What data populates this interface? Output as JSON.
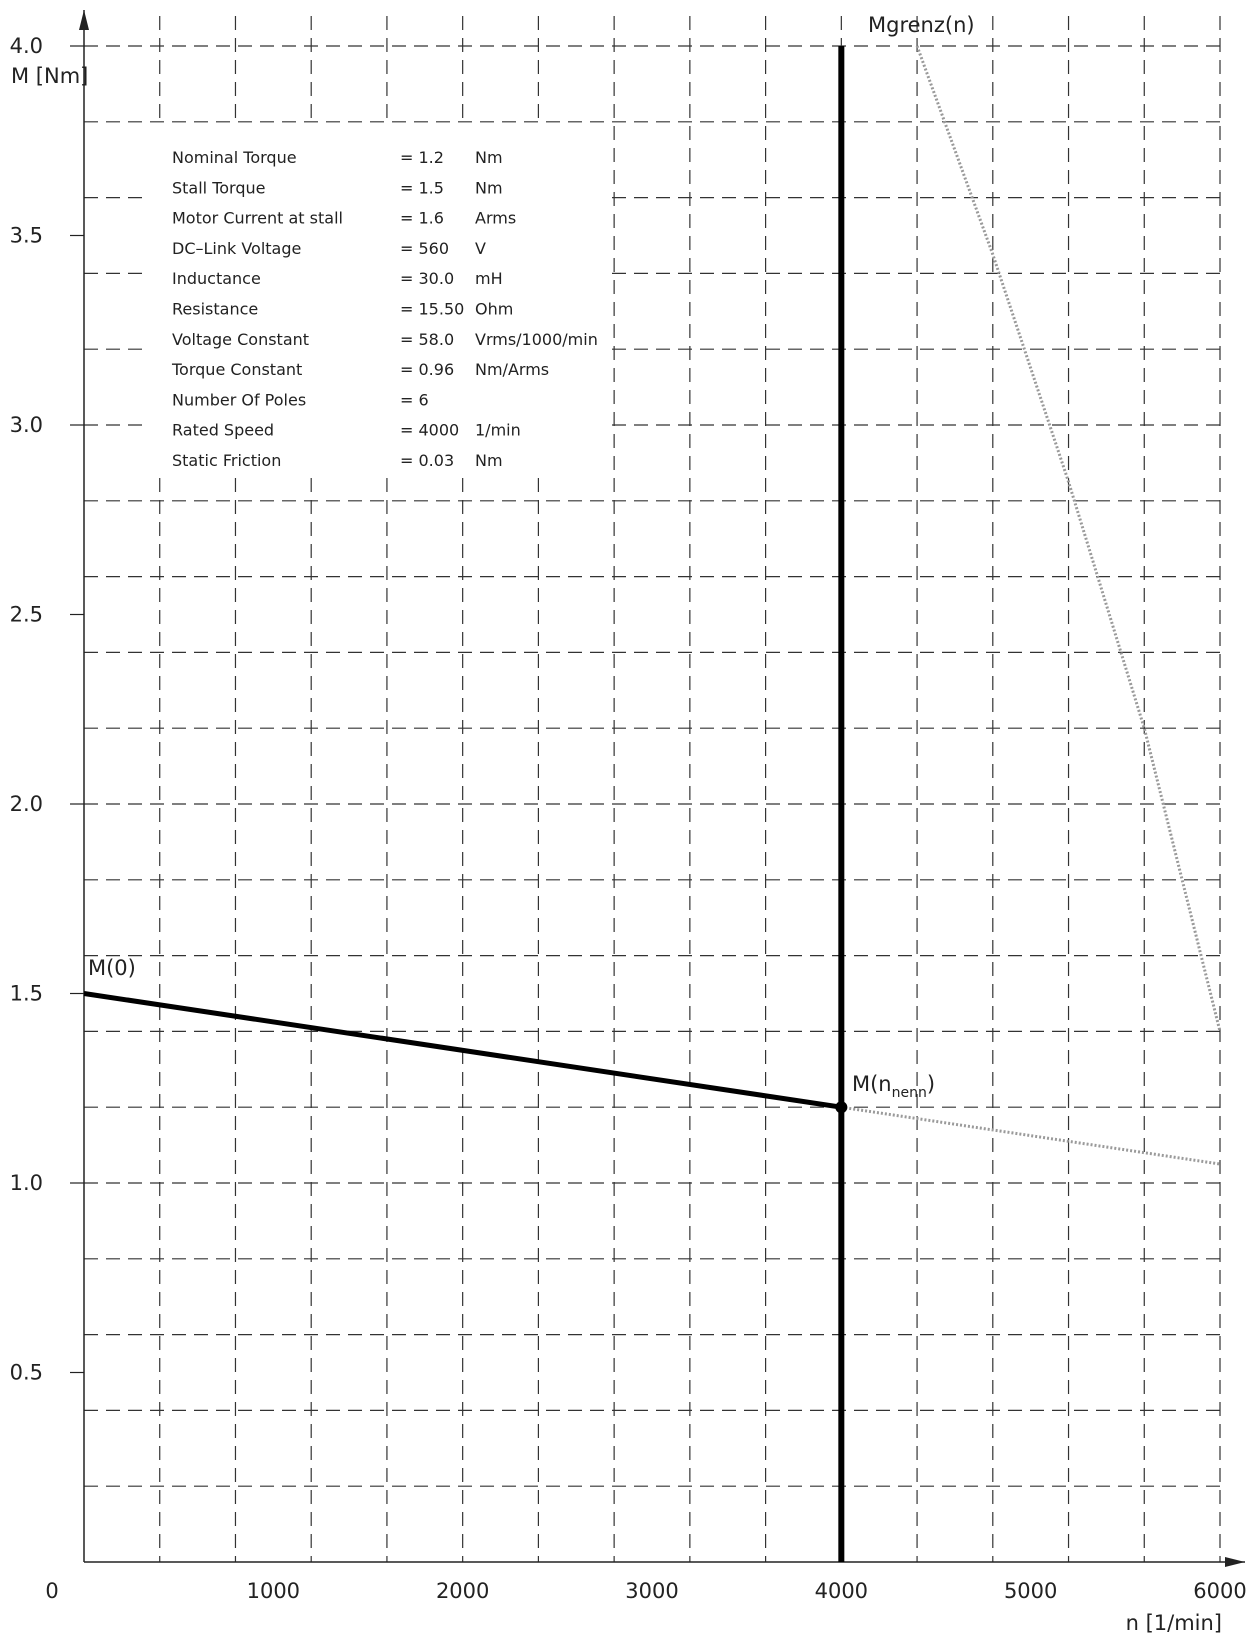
{
  "chart_data": {
    "type": "line",
    "xlabel": "n [1/min]",
    "ylabel": "M [Nm]",
    "xlim": [
      0,
      6000
    ],
    "ylim": [
      0,
      4.0
    ],
    "x_ticks": [
      "0",
      "1000",
      "2000",
      "3000",
      "4000",
      "5000",
      "6000"
    ],
    "y_ticks": [
      "0.5",
      "1.0",
      "1.5",
      "2.0",
      "2.5",
      "3.0",
      "3.5",
      "4.0"
    ],
    "grid": true,
    "series": [
      {
        "name": "M(0)",
        "style": "solid-thick",
        "color": "#000000",
        "x": [
          0,
          4000
        ],
        "y": [
          1.5,
          1.2
        ]
      },
      {
        "name": "",
        "style": "dotted",
        "color": "#9a9a9a",
        "x": [
          4000,
          6000
        ],
        "y": [
          1.2,
          1.05
        ]
      },
      {
        "name": "Mgrenz(n)",
        "style": "dotted",
        "color": "#9a9a9a",
        "x": [
          4400,
          4800,
          5200,
          5600,
          6000
        ],
        "y": [
          4.0,
          3.45,
          2.85,
          2.2,
          1.4
        ]
      }
    ],
    "vertical_lines": [
      {
        "x": 4000,
        "y_range": [
          0,
          4.0
        ],
        "style": "solid-thick",
        "color": "#000000"
      }
    ],
    "points": [
      {
        "x": 4000,
        "y": 1.2
      }
    ],
    "annotations": [
      {
        "id": "m0",
        "text": "M(0)"
      },
      {
        "id": "mnenn",
        "text": "M(n",
        "subscript": "nenn",
        "text_after": ")"
      },
      {
        "id": "mgrenz",
        "text": "Mgrenz(n)"
      }
    ]
  },
  "specs": [
    {
      "name": "Nominal Torque",
      "value": "= 1.2",
      "unit": "Nm"
    },
    {
      "name": "Stall Torque",
      "value": "= 1.5",
      "unit": "Nm"
    },
    {
      "name": "Motor Current at stall",
      "value": "= 1.6",
      "unit": "Arms"
    },
    {
      "name": "DC–Link Voltage",
      "value": "= 560",
      "unit": "V"
    },
    {
      "name": "Inductance",
      "value": "= 30.0",
      "unit": "mH"
    },
    {
      "name": "Resistance",
      "value": "= 15.50",
      "unit": "Ohm"
    },
    {
      "name": "Voltage Constant",
      "value": "= 58.0",
      "unit": "Vrms/1000/min"
    },
    {
      "name": "Torque Constant",
      "value": "= 0.96",
      "unit": "Nm/Arms"
    },
    {
      "name": "Number Of Poles",
      "value": "= 6",
      "unit": ""
    },
    {
      "name": "Rated Speed",
      "value": "= 4000",
      "unit": "1/min"
    },
    {
      "name": "Static Friction",
      "value": "= 0.03",
      "unit": "Nm"
    }
  ]
}
